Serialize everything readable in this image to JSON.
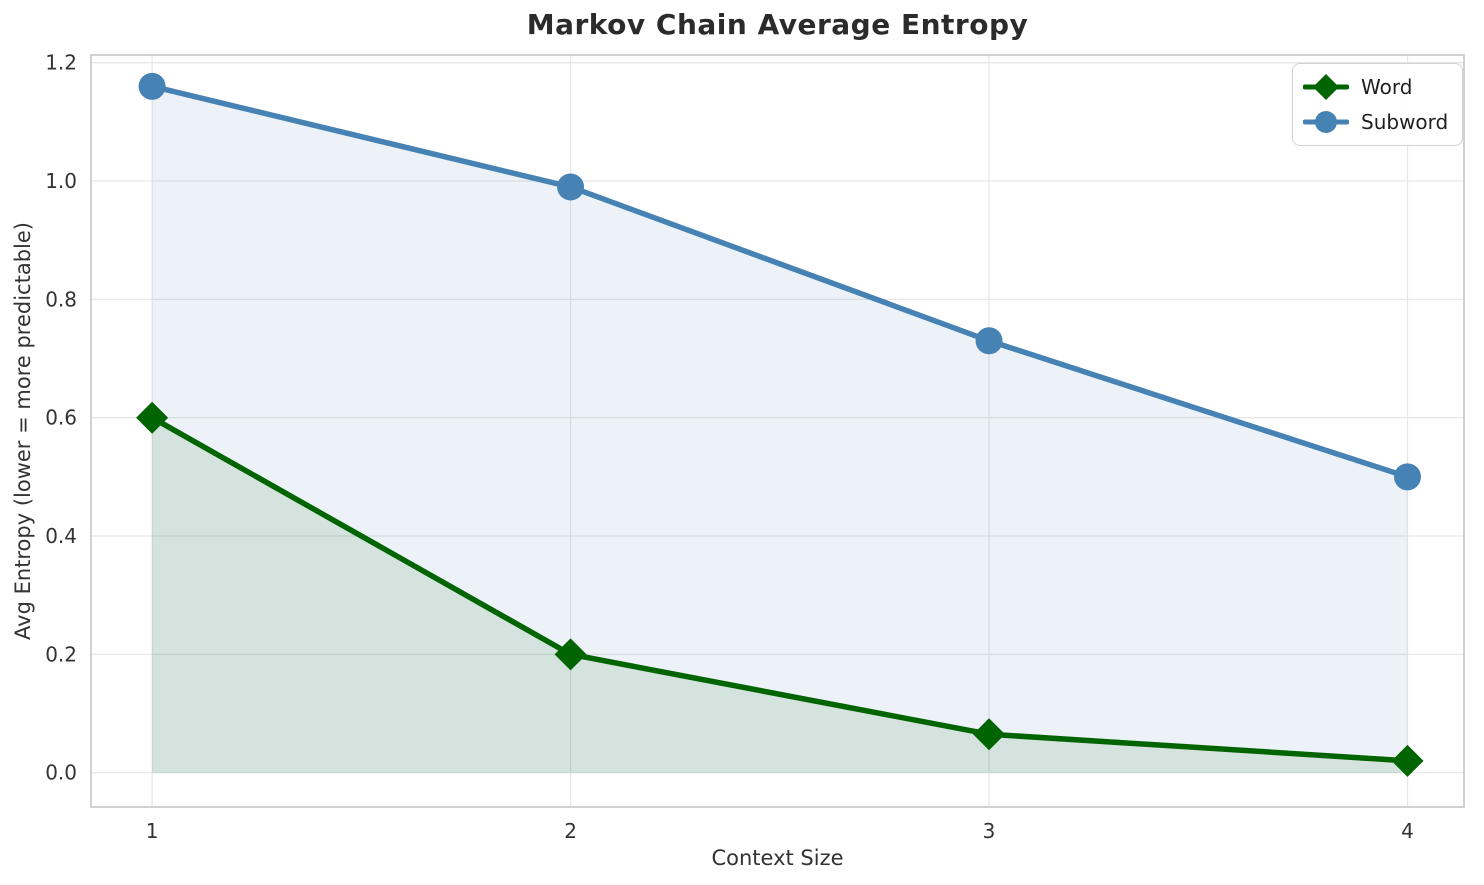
{
  "chart_data": {
    "type": "line",
    "title": "Markov Chain Average Entropy",
    "xlabel": "Context Size",
    "ylabel": "Avg Entropy (lower = more predictable)",
    "x": [
      1,
      2,
      3,
      4
    ],
    "series": [
      {
        "name": "Word",
        "values": [
          0.6,
          0.2,
          0.065,
          0.02
        ],
        "color": "#006400",
        "marker": "diamond",
        "area_fill": true
      },
      {
        "name": "Subword",
        "values": [
          1.16,
          0.99,
          0.73,
          0.5
        ],
        "color": "#4682b4",
        "marker": "circle",
        "area_fill": true
      }
    ],
    "xticks": [
      "1",
      "2",
      "3",
      "4"
    ],
    "yticks": [
      "0.0",
      "0.2",
      "0.4",
      "0.6",
      "0.8",
      "1.0",
      "1.2"
    ],
    "xlim": [
      0.854,
      4.135
    ],
    "ylim": [
      -0.058,
      1.213
    ],
    "grid": true,
    "legend_position": "upper right",
    "colors": {
      "background": "#ffffff",
      "grid": "#e7e7e7",
      "spine": "#cccccc",
      "tick_text": "#333333",
      "title_text": "#2b2b2b"
    }
  }
}
